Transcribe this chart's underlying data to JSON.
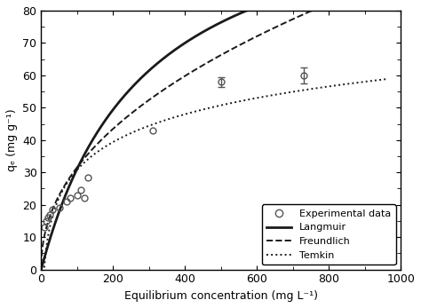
{
  "exp_x": [
    10,
    15,
    20,
    25,
    30,
    50,
    70,
    80,
    100,
    110,
    120,
    130,
    310,
    500,
    730
  ],
  "exp_y": [
    13,
    15,
    16,
    17,
    18.5,
    19,
    21,
    22,
    23,
    24.5,
    22,
    28.5,
    43,
    58,
    60
  ],
  "exp_yerr": [
    0,
    0,
    0,
    0,
    0,
    0,
    0,
    0,
    0,
    0,
    0,
    0,
    0,
    1.5,
    2.5
  ],
  "langmuir_qmax": 120.0,
  "langmuir_KL": 0.0035,
  "freundlich_KF": 3.8,
  "freundlich_n": 0.46,
  "temkin_AT": 0.12,
  "temkin_bT": 200.0,
  "xmin": 0,
  "xmax": 1000,
  "ymin": 0,
  "ymax": 80,
  "xlabel": "Equilibrium concentration (mg L⁻¹)",
  "ylabel": "qₑ (mg g⁻¹)",
  "xticks": [
    0,
    200,
    400,
    600,
    800,
    1000
  ],
  "yticks": [
    0,
    10,
    20,
    30,
    40,
    50,
    60,
    70,
    80
  ],
  "legend_labels": [
    "Experimental data",
    "Langmuir",
    "Freundlich",
    "Temkin"
  ],
  "line_color": "#1a1a1a",
  "marker_color": "#555555",
  "background_color": "#ffffff"
}
